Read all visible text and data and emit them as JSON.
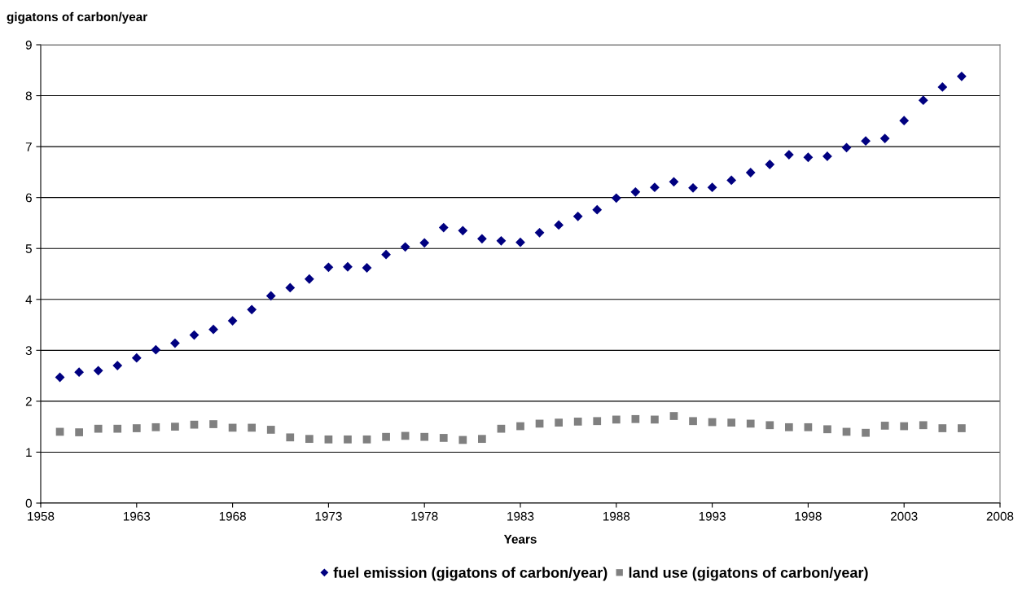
{
  "chart_data": {
    "type": "scatter",
    "ylabel": "gigatons of carbon/year",
    "xlabel": "Years",
    "x": [
      1959,
      1960,
      1961,
      1962,
      1963,
      1964,
      1965,
      1966,
      1967,
      1968,
      1969,
      1970,
      1971,
      1972,
      1973,
      1974,
      1975,
      1976,
      1977,
      1978,
      1979,
      1980,
      1981,
      1982,
      1983,
      1984,
      1985,
      1986,
      1987,
      1988,
      1989,
      1990,
      1991,
      1992,
      1993,
      1994,
      1995,
      1996,
      1997,
      1998,
      1999,
      2000,
      2001,
      2002,
      2003,
      2004,
      2005,
      2006
    ],
    "series": [
      {
        "name": "fuel emission (gigatons of carbon/year)",
        "color": "#000080",
        "marker": "diamond",
        "values": [
          2.47,
          2.57,
          2.6,
          2.7,
          2.85,
          3.01,
          3.14,
          3.3,
          3.41,
          3.58,
          3.8,
          4.07,
          4.23,
          4.4,
          4.63,
          4.64,
          4.62,
          4.88,
          5.03,
          5.11,
          5.41,
          5.35,
          5.19,
          5.15,
          5.12,
          5.31,
          5.46,
          5.63,
          5.76,
          5.99,
          6.11,
          6.2,
          6.31,
          6.19,
          6.2,
          6.34,
          6.49,
          6.65,
          6.84,
          6.79,
          6.81,
          6.98,
          7.11,
          7.16,
          7.51,
          7.91,
          8.17,
          8.38
        ]
      },
      {
        "name": "land use (gigatons of carbon/year)",
        "color": "#808080",
        "marker": "square",
        "values": [
          1.4,
          1.39,
          1.46,
          1.46,
          1.47,
          1.49,
          1.5,
          1.54,
          1.55,
          1.48,
          1.48,
          1.44,
          1.29,
          1.26,
          1.25,
          1.25,
          1.25,
          1.3,
          1.32,
          1.3,
          1.28,
          1.24,
          1.26,
          1.46,
          1.51,
          1.56,
          1.58,
          1.6,
          1.61,
          1.64,
          1.65,
          1.64,
          1.71,
          1.61,
          1.59,
          1.58,
          1.56,
          1.53,
          1.49,
          1.49,
          1.45,
          1.4,
          1.38,
          1.52,
          1.51,
          1.53,
          1.47,
          1.47
        ]
      }
    ],
    "xlim": [
      1958,
      2008
    ],
    "xticks": [
      1958,
      1963,
      1968,
      1973,
      1978,
      1983,
      1988,
      1993,
      1998,
      2003,
      2008
    ],
    "ylim": [
      0,
      9
    ],
    "yticks": [
      0,
      1,
      2,
      3,
      4,
      5,
      6,
      7,
      8,
      9
    ],
    "grid": "y",
    "legend": "bottom"
  }
}
